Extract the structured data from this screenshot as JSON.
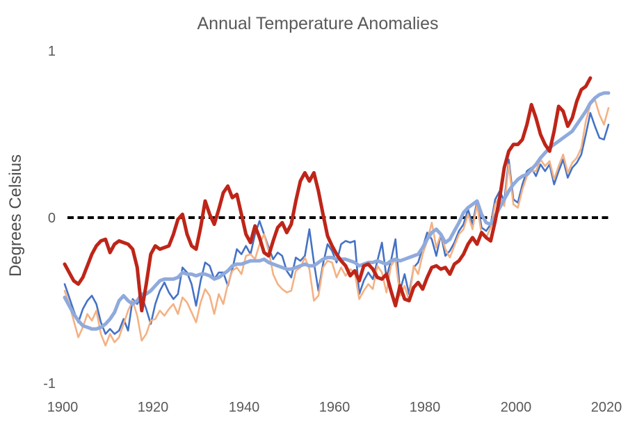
{
  "title": "Annual Temperature Anomalies",
  "y_axis": {
    "label": "Degrees Celsius",
    "ticks": [
      "1",
      "0",
      "-1"
    ],
    "tick_values": [
      1,
      0,
      -1
    ]
  },
  "x_axis": {
    "ticks": [
      "1900",
      "1920",
      "1940",
      "1960",
      "1980",
      "2000",
      "2020"
    ],
    "tick_values": [
      1900,
      1920,
      1940,
      1960,
      1980,
      2000,
      2020
    ]
  },
  "colors": {
    "title_gray": "#595959",
    "zero_line": "#000000",
    "series_red": "#BE2518",
    "series_blue": "#4472C4",
    "series_orange": "#F4B183",
    "series_lightblue": "#8FAADC",
    "background": "#ffffff"
  },
  "chart_data": {
    "type": "line",
    "title": "Annual Temperature Anomalies",
    "xlabel": "",
    "ylabel": "Degrees Celsius",
    "xlim": [
      1900,
      2020
    ],
    "ylim": [
      -1,
      1
    ],
    "grid": false,
    "legend": "none",
    "zero_line": {
      "value": 0,
      "style": "dashed",
      "color": "#000000"
    },
    "series": [
      {
        "name": "series-blue-annual",
        "color": "#4472C4",
        "width": 2.6,
        "start_year": 1900,
        "values": [
          -0.4,
          -0.48,
          -0.56,
          -0.63,
          -0.55,
          -0.5,
          -0.47,
          -0.52,
          -0.63,
          -0.7,
          -0.67,
          -0.7,
          -0.68,
          -0.61,
          -0.68,
          -0.49,
          -0.52,
          -0.47,
          -0.55,
          -0.64,
          -0.52,
          -0.44,
          -0.39,
          -0.45,
          -0.49,
          -0.46,
          -0.3,
          -0.33,
          -0.4,
          -0.53,
          -0.38,
          -0.27,
          -0.29,
          -0.37,
          -0.33,
          -0.33,
          -0.41,
          -0.31,
          -0.19,
          -0.22,
          -0.17,
          -0.22,
          -0.1,
          -0.02,
          -0.1,
          -0.18,
          -0.25,
          -0.21,
          -0.23,
          -0.32,
          -0.36,
          -0.24,
          -0.26,
          -0.23,
          -0.07,
          -0.27,
          -0.44,
          -0.28,
          -0.16,
          -0.2,
          -0.27,
          -0.16,
          -0.14,
          -0.15,
          -0.14,
          -0.46,
          -0.38,
          -0.33,
          -0.37,
          -0.26,
          -0.15,
          -0.36,
          -0.26,
          -0.13,
          -0.44,
          -0.34,
          -0.46,
          -0.3,
          -0.27,
          -0.18,
          -0.09,
          -0.13,
          -0.23,
          -0.1,
          -0.23,
          -0.2,
          -0.15,
          -0.08,
          -0.04,
          0.05,
          -0.04,
          0.1,
          -0.06,
          -0.08,
          -0.04,
          0.11,
          0.16,
          0.1,
          0.35,
          0.11,
          0.09,
          0.2,
          0.28,
          0.3,
          0.25,
          0.32,
          0.28,
          0.32,
          0.2,
          0.28,
          0.35,
          0.24,
          0.3,
          0.33,
          0.38,
          0.5,
          0.63,
          0.55,
          0.48,
          0.47,
          0.56
        ]
      },
      {
        "name": "series-orange-annual",
        "color": "#F4B183",
        "width": 2.6,
        "start_year": 1900,
        "values": [
          -0.44,
          -0.52,
          -0.62,
          -0.72,
          -0.66,
          -0.58,
          -0.62,
          -0.56,
          -0.7,
          -0.77,
          -0.7,
          -0.75,
          -0.72,
          -0.64,
          -0.56,
          -0.5,
          -0.59,
          -0.74,
          -0.7,
          -0.62,
          -0.61,
          -0.56,
          -0.59,
          -0.55,
          -0.52,
          -0.58,
          -0.48,
          -0.51,
          -0.57,
          -0.63,
          -0.51,
          -0.43,
          -0.47,
          -0.58,
          -0.46,
          -0.52,
          -0.4,
          -0.32,
          -0.3,
          -0.34,
          -0.23,
          -0.22,
          -0.25,
          -0.16,
          -0.1,
          -0.2,
          -0.34,
          -0.4,
          -0.43,
          -0.45,
          -0.44,
          -0.32,
          -0.3,
          -0.24,
          -0.31,
          -0.5,
          -0.47,
          -0.3,
          -0.26,
          -0.27,
          -0.36,
          -0.3,
          -0.35,
          -0.31,
          -0.33,
          -0.49,
          -0.44,
          -0.4,
          -0.43,
          -0.29,
          -0.33,
          -0.45,
          -0.29,
          -0.25,
          -0.47,
          -0.41,
          -0.5,
          -0.29,
          -0.34,
          -0.22,
          -0.14,
          -0.03,
          -0.18,
          -0.1,
          -0.19,
          -0.24,
          -0.17,
          -0.1,
          -0.07,
          0.02,
          -0.07,
          0.08,
          -0.1,
          -0.12,
          -0.06,
          0.08,
          0.13,
          0.07,
          0.32,
          0.08,
          0.06,
          0.17,
          0.25,
          0.28,
          0.28,
          0.35,
          0.31,
          0.34,
          0.23,
          0.31,
          0.38,
          0.27,
          0.33,
          0.36,
          0.42,
          0.58,
          0.68,
          0.71,
          0.62,
          0.56,
          0.66
        ]
      },
      {
        "name": "series-lightblue-smoothed",
        "color": "#8FAADC",
        "width": 5,
        "start_year": 1900,
        "values": [
          -0.48,
          -0.53,
          -0.58,
          -0.62,
          -0.65,
          -0.66,
          -0.67,
          -0.67,
          -0.66,
          -0.64,
          -0.61,
          -0.57,
          -0.5,
          -0.47,
          -0.5,
          -0.52,
          -0.5,
          -0.46,
          -0.46,
          -0.44,
          -0.41,
          -0.38,
          -0.37,
          -0.37,
          -0.37,
          -0.36,
          -0.33,
          -0.34,
          -0.34,
          -0.35,
          -0.34,
          -0.34,
          -0.35,
          -0.37,
          -0.36,
          -0.34,
          -0.32,
          -0.29,
          -0.28,
          -0.28,
          -0.27,
          -0.26,
          -0.26,
          -0.26,
          -0.25,
          -0.27,
          -0.28,
          -0.29,
          -0.3,
          -0.31,
          -0.31,
          -0.3,
          -0.29,
          -0.28,
          -0.29,
          -0.29,
          -0.27,
          -0.25,
          -0.24,
          -0.24,
          -0.25,
          -0.25,
          -0.25,
          -0.26,
          -0.27,
          -0.29,
          -0.28,
          -0.27,
          -0.27,
          -0.26,
          -0.27,
          -0.28,
          -0.26,
          -0.25,
          -0.26,
          -0.25,
          -0.24,
          -0.23,
          -0.22,
          -0.18,
          -0.13,
          -0.09,
          -0.07,
          -0.1,
          -0.15,
          -0.13,
          -0.08,
          -0.03,
          0.03,
          0.06,
          0.08,
          0.1,
          0.02,
          -0.03,
          -0.04,
          0.01,
          0.06,
          0.11,
          0.16,
          0.2,
          0.23,
          0.25,
          0.26,
          0.29,
          0.32,
          0.36,
          0.39,
          0.42,
          0.44,
          0.46,
          0.48,
          0.5,
          0.52,
          0.56,
          0.6,
          0.64,
          0.69,
          0.72,
          0.74,
          0.75,
          0.75
        ]
      },
      {
        "name": "series-red-annual",
        "color": "#BE2518",
        "width": 5,
        "start_year": 1900,
        "values": [
          -0.28,
          -0.33,
          -0.38,
          -0.4,
          -0.36,
          -0.29,
          -0.22,
          -0.17,
          -0.14,
          -0.13,
          -0.21,
          -0.16,
          -0.14,
          -0.15,
          -0.16,
          -0.19,
          -0.3,
          -0.56,
          -0.4,
          -0.22,
          -0.17,
          -0.19,
          -0.18,
          -0.17,
          -0.1,
          -0.01,
          0.02,
          -0.1,
          -0.17,
          -0.19,
          -0.06,
          0.1,
          0.02,
          -0.04,
          0.05,
          0.15,
          0.19,
          0.12,
          0.14,
          0.02,
          -0.1,
          -0.15,
          -0.05,
          -0.12,
          -0.21,
          -0.23,
          -0.14,
          -0.06,
          -0.03,
          -0.09,
          -0.04,
          0.1,
          0.22,
          0.27,
          0.22,
          0.27,
          0.16,
          0.02,
          -0.11,
          -0.17,
          -0.22,
          -0.26,
          -0.29,
          -0.35,
          -0.32,
          -0.38,
          -0.29,
          -0.28,
          -0.31,
          -0.36,
          -0.37,
          -0.34,
          -0.44,
          -0.53,
          -0.41,
          -0.49,
          -0.5,
          -0.42,
          -0.39,
          -0.43,
          -0.36,
          -0.3,
          -0.29,
          -0.31,
          -0.3,
          -0.34,
          -0.28,
          -0.26,
          -0.22,
          -0.16,
          -0.12,
          -0.16,
          -0.09,
          -0.12,
          -0.14,
          -0.02,
          0.12,
          0.3,
          0.4,
          0.44,
          0.44,
          0.47,
          0.56,
          0.68,
          0.6,
          0.5,
          0.44,
          0.4,
          0.52,
          0.67,
          0.64,
          0.55,
          0.6,
          0.7,
          0.77,
          0.79,
          0.84
        ]
      }
    ]
  }
}
